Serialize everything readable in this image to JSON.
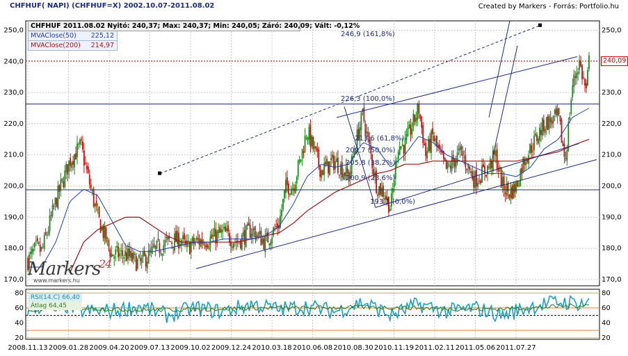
{
  "header": {
    "left": "CHFHUF( NAPI)  (CHFHUF=X)  2002.10.07-2011.08.02",
    "right": "Created by Markers - Forrás: Portfolio.hu"
  },
  "legend": {
    "ohlc": "CHFHUF 2011.08.02 Nyitó: 240,37; Max: 240,37; Min: 240,05; Záró: 240,09; Vált: -0,12%",
    "ma50_label": "MVAClose(50)",
    "ma50_value": "225,12",
    "ma200_label": "MVAClose(200)",
    "ma200_value": "214,97",
    "rsi_label": "RSI(14,C)",
    "rsi_value": "66,40",
    "atlag_label": "Átlag",
    "atlag_value": "64,45"
  },
  "last_price_tag": "240,09",
  "logo": {
    "text": "Markers",
    "badge": "24",
    "url": "www.markers.hu"
  },
  "fib_labels": [
    {
      "text": "246,9  (161,8%)",
      "price": 246.9
    },
    {
      "text": "226,3  (100,0%)",
      "price": 226.3
    },
    {
      "text": "213,6  (61,8%)",
      "price": 213.6
    },
    {
      "text": "209,7  (50,0%)",
      "price": 209.7
    },
    {
      "text": "205,8  (38,2%)",
      "price": 205.8
    },
    {
      "text": "200,9  (23,6%)",
      "price": 200.9
    },
    {
      "text": "193,1  (0,0%)",
      "price": 193.1
    }
  ],
  "colors": {
    "up": "#1a8a1a",
    "down": "#c01010",
    "ma50": "#1e3fb0",
    "ma200": "#a01010",
    "line": "#1a2a80",
    "rsi": "#1aa0c0",
    "grid": "#c8c8c8"
  },
  "chart_data": {
    "type": "line",
    "title": "CHFHUF( NAPI)  (CHFHUF=X)",
    "x_ticks": [
      "2008.11.13",
      "2009.01.28",
      "2009.04.20",
      "2009.07.13",
      "2009.10.02",
      "2009.12.24",
      "2010.03.18",
      "2010.06.08",
      "2010.08.30",
      "2010.11.19",
      "2011.02.11",
      "2011.05.06",
      "2011.07.27"
    ],
    "y_ticks": [
      170,
      180,
      190,
      200,
      210,
      220,
      230,
      240,
      250
    ],
    "ylim": [
      168,
      253
    ],
    "rsi_ticks": [
      20,
      40,
      60,
      80
    ],
    "rsi_ylim": [
      18,
      85
    ],
    "close_anchors": [
      [
        0,
        176
      ],
      [
        0.6,
        180
      ],
      [
        1,
        179
      ],
      [
        2,
        195
      ],
      [
        3,
        208
      ],
      [
        3.8,
        213
      ],
      [
        4.2,
        205
      ],
      [
        5,
        190
      ],
      [
        5.5,
        184
      ],
      [
        6,
        178
      ],
      [
        7,
        178
      ],
      [
        8,
        175
      ],
      [
        9,
        179
      ],
      [
        10,
        182
      ],
      [
        11,
        183
      ],
      [
        11.3,
        180
      ],
      [
        12,
        182
      ],
      [
        13,
        183
      ],
      [
        14,
        185
      ],
      [
        15,
        182
      ],
      [
        16,
        186
      ],
      [
        17,
        182
      ],
      [
        18,
        188
      ],
      [
        18.5,
        200
      ],
      [
        19,
        200
      ],
      [
        19.5,
        208
      ],
      [
        20,
        218
      ],
      [
        21,
        205
      ],
      [
        22,
        208
      ],
      [
        23,
        203
      ],
      [
        23.5,
        214
      ],
      [
        24,
        223
      ],
      [
        25,
        200
      ],
      [
        25.5,
        198
      ],
      [
        26,
        193
      ],
      [
        26.5,
        213
      ],
      [
        27,
        213
      ],
      [
        28,
        225
      ],
      [
        28.5,
        210
      ],
      [
        29,
        216
      ],
      [
        29.5,
        210
      ],
      [
        30,
        205
      ],
      [
        31,
        211
      ],
      [
        32,
        202
      ],
      [
        33,
        206
      ],
      [
        33.5,
        210
      ],
      [
        34,
        200
      ],
      [
        34.5,
        198
      ],
      [
        35,
        200
      ],
      [
        35.5,
        208
      ],
      [
        36,
        212
      ],
      [
        37,
        220
      ],
      [
        38,
        222
      ],
      [
        38.5,
        208
      ],
      [
        39,
        232
      ],
      [
        39.5,
        240
      ],
      [
        40,
        230
      ],
      [
        40.2,
        240
      ]
    ],
    "ma50_anchors": [
      [
        0,
        174
      ],
      [
        1,
        174
      ],
      [
        2,
        182
      ],
      [
        3,
        195
      ],
      [
        4,
        199
      ],
      [
        5,
        197
      ],
      [
        6,
        189
      ],
      [
        7,
        181
      ],
      [
        8,
        179
      ],
      [
        9,
        179
      ],
      [
        10,
        180
      ],
      [
        11,
        181
      ],
      [
        12,
        182
      ],
      [
        13,
        182
      ],
      [
        14,
        183
      ],
      [
        15,
        183
      ],
      [
        16,
        183
      ],
      [
        17,
        184
      ],
      [
        18,
        187
      ],
      [
        19,
        194
      ],
      [
        20,
        203
      ],
      [
        21,
        207
      ],
      [
        22,
        206
      ],
      [
        23,
        207
      ],
      [
        24,
        214
      ],
      [
        25,
        212
      ],
      [
        26,
        206
      ],
      [
        27,
        210
      ],
      [
        28,
        216
      ],
      [
        29,
        214
      ],
      [
        30,
        210
      ],
      [
        31,
        208
      ],
      [
        32,
        206
      ],
      [
        33,
        204
      ],
      [
        34,
        204
      ],
      [
        35,
        203
      ],
      [
        36,
        206
      ],
      [
        37,
        212
      ],
      [
        38,
        215
      ],
      [
        39,
        222
      ],
      [
        40.2,
        225
      ]
    ],
    "ma200_anchors": [
      [
        3,
        172
      ],
      [
        4,
        182
      ],
      [
        5,
        186
      ],
      [
        6,
        188
      ],
      [
        7,
        190
      ],
      [
        8,
        190
      ],
      [
        9,
        187
      ],
      [
        10,
        184
      ],
      [
        11,
        182
      ],
      [
        12,
        182
      ],
      [
        13,
        182
      ],
      [
        14,
        182
      ],
      [
        15,
        182
      ],
      [
        16,
        183
      ],
      [
        17,
        184
      ],
      [
        18,
        185
      ],
      [
        19,
        188
      ],
      [
        20,
        192
      ],
      [
        21,
        195
      ],
      [
        22,
        198
      ],
      [
        23,
        200
      ],
      [
        24,
        202
      ],
      [
        25,
        204
      ],
      [
        26,
        205
      ],
      [
        27,
        207
      ],
      [
        28,
        207
      ],
      [
        29,
        208
      ],
      [
        30,
        208
      ],
      [
        31,
        208
      ],
      [
        32,
        208
      ],
      [
        33,
        208
      ],
      [
        34,
        208
      ],
      [
        35,
        208
      ],
      [
        36,
        209
      ],
      [
        37,
        210
      ],
      [
        38,
        211
      ],
      [
        39,
        213
      ],
      [
        40.2,
        215
      ]
    ],
    "rsi_anchors": [
      [
        0,
        58
      ],
      [
        2,
        68
      ],
      [
        4,
        55
      ],
      [
        6,
        56
      ],
      [
        8,
        62
      ],
      [
        10,
        50
      ],
      [
        12,
        60
      ],
      [
        14,
        55
      ],
      [
        16,
        65
      ],
      [
        18,
        58
      ],
      [
        20,
        62
      ],
      [
        22,
        55
      ],
      [
        24,
        68
      ],
      [
        26,
        50
      ],
      [
        28,
        65
      ],
      [
        30,
        55
      ],
      [
        32,
        60
      ],
      [
        34,
        50
      ],
      [
        36,
        62
      ],
      [
        38,
        68
      ],
      [
        40.2,
        66
      ]
    ],
    "atlag_anchors": [
      [
        0,
        56
      ],
      [
        4,
        60
      ],
      [
        8,
        57
      ],
      [
        12,
        58
      ],
      [
        16,
        60
      ],
      [
        20,
        60
      ],
      [
        24,
        61
      ],
      [
        28,
        60
      ],
      [
        32,
        58
      ],
      [
        36,
        60
      ],
      [
        40.2,
        64
      ]
    ]
  }
}
